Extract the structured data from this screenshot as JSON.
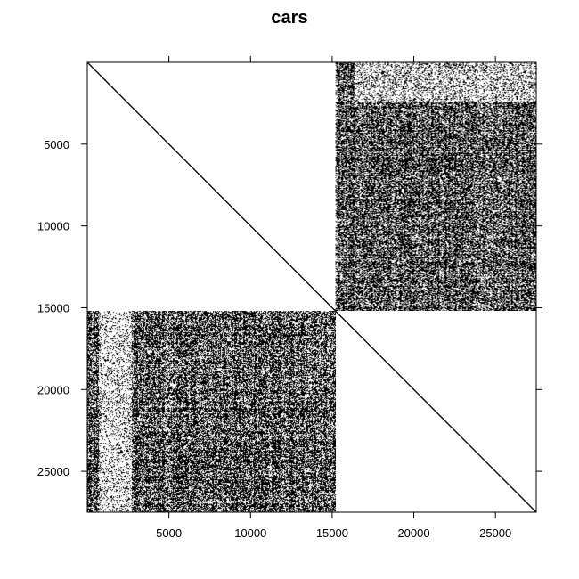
{
  "chart_data": {
    "type": "heatmap",
    "title": "cars",
    "xlabel": "",
    "ylabel": "",
    "xlim": [
      0,
      27500
    ],
    "ylim": [
      0,
      27500
    ],
    "y_reversed": true,
    "x_ticks": [
      5000,
      10000,
      15000,
      20000,
      25000
    ],
    "y_ticks": [
      5000,
      10000,
      15000,
      20000,
      25000
    ],
    "x_tick_labels": [
      "5000",
      "10000",
      "15000",
      "20000",
      "25000"
    ],
    "y_tick_labels": [
      "5000",
      "10000",
      "15000",
      "20000",
      "25000"
    ],
    "diagonal": true,
    "blocks": [
      {
        "x": [
          15200,
          27500
        ],
        "y": [
          0,
          15200
        ],
        "pattern": "dense-noise"
      },
      {
        "x": [
          0,
          15200
        ],
        "y": [
          15200,
          27500
        ],
        "pattern": "dense-noise"
      }
    ],
    "colors": {
      "fill": "#000000",
      "background": "#ffffff"
    }
  }
}
